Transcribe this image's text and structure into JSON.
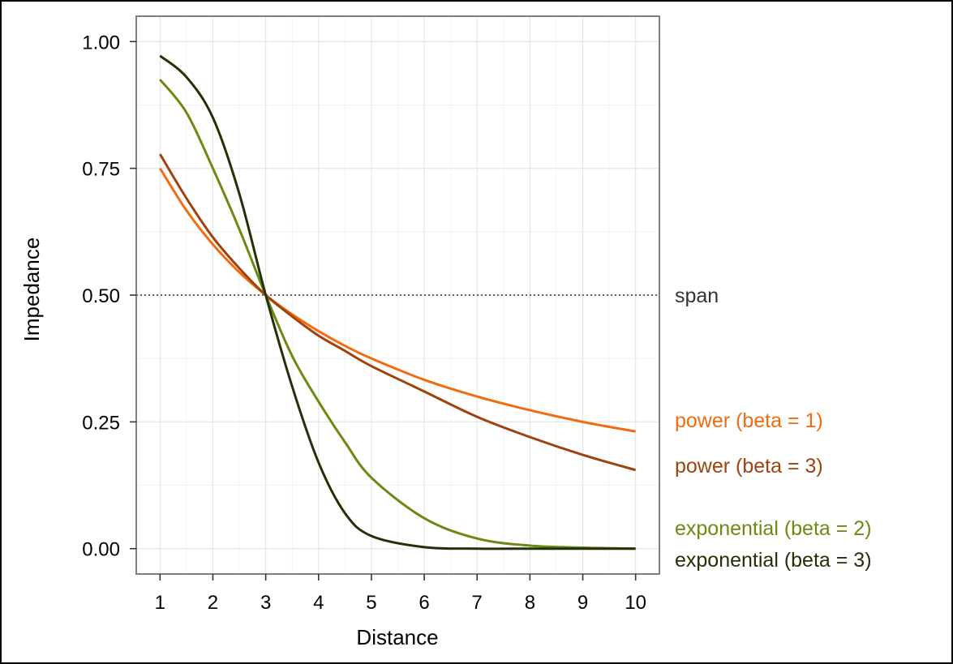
{
  "chart_data": {
    "type": "line",
    "title": "",
    "xlabel": "Distance",
    "ylabel": "Impedance",
    "xlim": [
      0.55,
      10.45
    ],
    "ylim": [
      -0.05,
      1.05
    ],
    "x_ticks": [
      "1",
      "2",
      "3",
      "4",
      "5",
      "6",
      "7",
      "8",
      "9",
      "10"
    ],
    "y_ticks": [
      "0.00",
      "0.25",
      "0.50",
      "0.75",
      "1.00"
    ],
    "grid": true,
    "reference_line": {
      "y": 0.5,
      "label": "span",
      "style": "dotted",
      "color": "#333333"
    },
    "x": [
      1,
      1.5,
      2,
      2.5,
      3,
      3.5,
      4,
      4.5,
      5,
      6,
      7,
      8,
      9,
      10
    ],
    "series": [
      {
        "name": "power (beta = 1)",
        "color": "#F26B10",
        "values": [
          0.75,
          0.667,
          0.6,
          0.545,
          0.5,
          0.462,
          0.429,
          0.4,
          0.375,
          0.333,
          0.3,
          0.273,
          0.25,
          0.231
        ]
      },
      {
        "name": "power (beta = 3)",
        "color": "#A0420E",
        "values": [
          0.778,
          0.691,
          0.614,
          0.553,
          0.5,
          0.458,
          0.42,
          0.39,
          0.36,
          0.31,
          0.26,
          0.22,
          0.185,
          0.155
        ]
      },
      {
        "name": "exponential (beta = 2)",
        "color": "#6B8A12",
        "values": [
          0.925,
          0.86,
          0.75,
          0.63,
          0.5,
          0.38,
          0.29,
          0.21,
          0.14,
          0.06,
          0.02,
          0.006,
          0.002,
          0.0
        ]
      },
      {
        "name": "exponential (beta = 3)",
        "color": "#233109",
        "values": [
          0.972,
          0.93,
          0.85,
          0.7,
          0.5,
          0.32,
          0.17,
          0.07,
          0.025,
          0.003,
          0.0,
          0.0,
          0.0,
          0.0
        ]
      }
    ]
  }
}
